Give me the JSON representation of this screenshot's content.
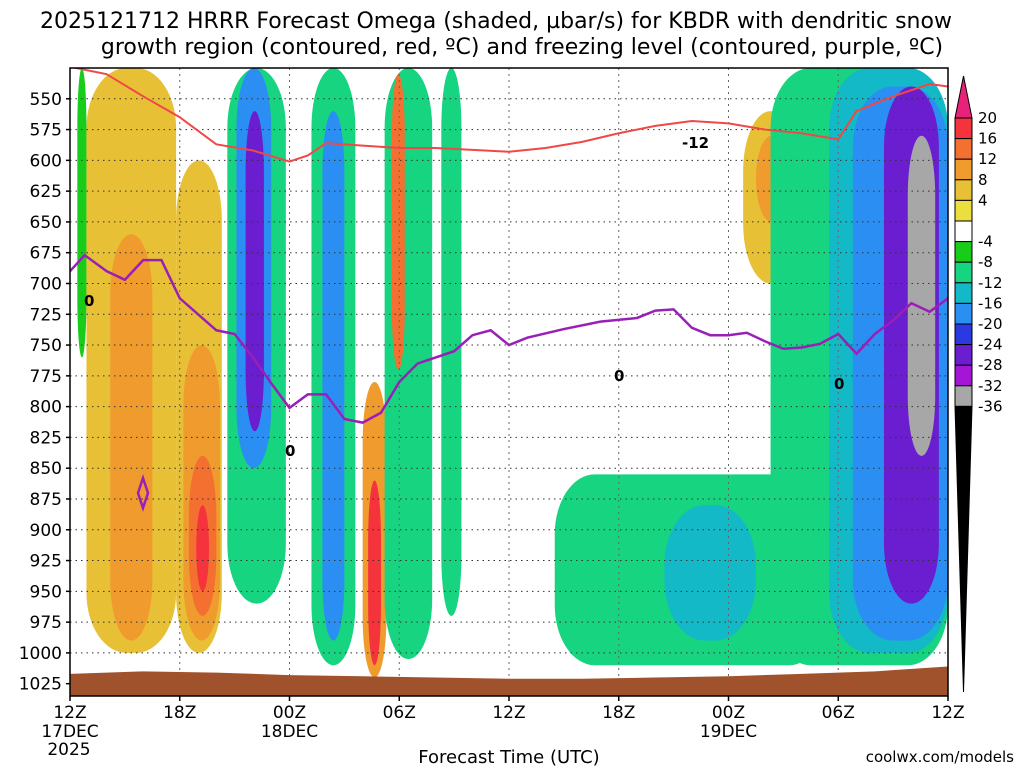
{
  "chart_data": {
    "type": "heatmap",
    "title_line1": "2025121712 HRRR Forecast Omega (shaded, µbar/s) for KBDR with dendritic snow",
    "title_line2": "growth region (contoured, red, ºC) and freezing level (contoured, purple, ºC)",
    "xlabel": "Forecast Time (UTC)",
    "ylabel": "",
    "credit": "coolwx.com/models",
    "x_range_hours": [
      0,
      48
    ],
    "y_range_hpa": [
      525,
      1035
    ],
    "x_ticks": [
      {
        "hour": 0,
        "label": "12Z",
        "sub1": "17DEC",
        "sub2": "2025"
      },
      {
        "hour": 6,
        "label": "18Z",
        "sub1": "",
        "sub2": ""
      },
      {
        "hour": 12,
        "label": "00Z",
        "sub1": "18DEC",
        "sub2": ""
      },
      {
        "hour": 18,
        "label": "06Z",
        "sub1": "",
        "sub2": ""
      },
      {
        "hour": 24,
        "label": "12Z",
        "sub1": "",
        "sub2": ""
      },
      {
        "hour": 30,
        "label": "18Z",
        "sub1": "",
        "sub2": ""
      },
      {
        "hour": 36,
        "label": "00Z",
        "sub1": "19DEC",
        "sub2": ""
      },
      {
        "hour": 42,
        "label": "06Z",
        "sub1": "",
        "sub2": ""
      },
      {
        "hour": 48,
        "label": "12Z",
        "sub1": "",
        "sub2": ""
      }
    ],
    "y_ticks": [
      "550",
      "575",
      "600",
      "625",
      "650",
      "675",
      "700",
      "725",
      "750",
      "775",
      "800",
      "825",
      "850",
      "875",
      "900",
      "925",
      "950",
      "975",
      "1000",
      "1025"
    ],
    "colorbar": {
      "labels": [
        "20",
        "16",
        "12",
        "8",
        "4",
        "-4",
        "-8",
        "-12",
        "-16",
        "-20",
        "-24",
        "-28",
        "-32",
        "-36"
      ],
      "colors": [
        "#e8217a",
        "#f4333c",
        "#f47030",
        "#f09b2e",
        "#e8c036",
        "#eadf3f",
        "#ffffff",
        "#19cc19",
        "#17d480",
        "#13b9c6",
        "#2b8ef2",
        "#2a3ae0",
        "#6b1ecf",
        "#a515d6",
        "#a7a7a7",
        "#000000"
      ]
    },
    "terrain_color": "#a0522d",
    "dgz_color": "#f04848",
    "freezing_color": "#9a1fb8",
    "freezing_level_hpa": [
      [
        0,
        690
      ],
      [
        0.8,
        677
      ],
      [
        2,
        690
      ],
      [
        3,
        697
      ],
      [
        4,
        681
      ],
      [
        5,
        681
      ],
      [
        6,
        712
      ],
      [
        8,
        738
      ],
      [
        9,
        741
      ],
      [
        10,
        760
      ],
      [
        11,
        781
      ],
      [
        12,
        801
      ],
      [
        13,
        790
      ],
      [
        14,
        790
      ],
      [
        15,
        810
      ],
      [
        16,
        813
      ],
      [
        17,
        805
      ],
      [
        18,
        780
      ],
      [
        19,
        765
      ],
      [
        21,
        755
      ],
      [
        22,
        742
      ],
      [
        23,
        738
      ],
      [
        24,
        750
      ],
      [
        25,
        744
      ],
      [
        27,
        737
      ],
      [
        29,
        731
      ],
      [
        31,
        728
      ],
      [
        32,
        722
      ],
      [
        33,
        721
      ],
      [
        34,
        736
      ],
      [
        35,
        742
      ],
      [
        36,
        742
      ],
      [
        37,
        740
      ],
      [
        38,
        747
      ],
      [
        39,
        753
      ],
      [
        40,
        752
      ],
      [
        41,
        749
      ],
      [
        42,
        741
      ],
      [
        43,
        757
      ],
      [
        44,
        741
      ],
      [
        45,
        730
      ],
      [
        46,
        716
      ],
      [
        47,
        723
      ],
      [
        48,
        712
      ]
    ],
    "dgz_minus12_hpa": [
      [
        0,
        524
      ],
      [
        2,
        530
      ],
      [
        4,
        548
      ],
      [
        6,
        565
      ],
      [
        8,
        587
      ],
      [
        10,
        592
      ],
      [
        12,
        601
      ],
      [
        13,
        596
      ],
      [
        14,
        586
      ],
      [
        16,
        588
      ],
      [
        18,
        590
      ],
      [
        20,
        590
      ],
      [
        24,
        593
      ],
      [
        26,
        590
      ],
      [
        28,
        585
      ],
      [
        30,
        578
      ],
      [
        32,
        572
      ],
      [
        34,
        568
      ],
      [
        36,
        570
      ],
      [
        38,
        575
      ],
      [
        40,
        578
      ],
      [
        42,
        583
      ],
      [
        43,
        560
      ],
      [
        45,
        548
      ],
      [
        47,
        538
      ],
      [
        48,
        540
      ]
    ],
    "labels": {
      "dgz_label": "-12",
      "fz_label": "0"
    },
    "omega_regions": [
      {
        "x0": 0.4,
        "x1": 0.9,
        "p0": 525,
        "p1": 760,
        "value": -6
      },
      {
        "x0": 0.9,
        "x1": 5.8,
        "p0": 525,
        "p1": 1000,
        "value": 5
      },
      {
        "x0": 2.2,
        "x1": 4.5,
        "p0": 660,
        "p1": 990,
        "value": 9
      },
      {
        "x0": 5.8,
        "x1": 8.3,
        "p0": 600,
        "p1": 1000,
        "value": 6
      },
      {
        "x0": 6.2,
        "x1": 8.2,
        "p0": 750,
        "p1": 990,
        "value": 10
      },
      {
        "x0": 6.5,
        "x1": 8.0,
        "p0": 840,
        "p1": 970,
        "value": 15
      },
      {
        "x0": 6.9,
        "x1": 7.6,
        "p0": 880,
        "p1": 950,
        "value": 18
      },
      {
        "x0": 8.6,
        "x1": 11.8,
        "p0": 525,
        "p1": 960,
        "value": -10
      },
      {
        "x0": 9.1,
        "x1": 11.0,
        "p0": 525,
        "p1": 850,
        "value": -18
      },
      {
        "x0": 9.6,
        "x1": 10.6,
        "p0": 560,
        "p1": 820,
        "value": -26
      },
      {
        "x0": 13.2,
        "x1": 15.6,
        "p0": 525,
        "p1": 1010,
        "value": -10
      },
      {
        "x0": 13.8,
        "x1": 15.0,
        "p0": 560,
        "p1": 990,
        "value": -18
      },
      {
        "x0": 16.0,
        "x1": 17.3,
        "p0": 780,
        "p1": 1020,
        "value": 8
      },
      {
        "x0": 16.3,
        "x1": 17.0,
        "p0": 860,
        "p1": 1010,
        "value": 16
      },
      {
        "x0": 17.2,
        "x1": 19.8,
        "p0": 525,
        "p1": 1005,
        "value": -9
      },
      {
        "x0": 17.6,
        "x1": 18.3,
        "p0": 530,
        "p1": 770,
        "value": 14
      },
      {
        "x0": 20.3,
        "x1": 21.4,
        "p0": 525,
        "p1": 970,
        "value": -9
      },
      {
        "x0": 26.5,
        "x1": 41.5,
        "p0": 855,
        "p1": 1010,
        "value": -8
      },
      {
        "x0": 32.5,
        "x1": 37.5,
        "p0": 880,
        "p1": 990,
        "value": -13
      },
      {
        "x0": 36.8,
        "x1": 39.8,
        "p0": 560,
        "p1": 700,
        "value": 6
      },
      {
        "x0": 37.5,
        "x1": 39.2,
        "p0": 580,
        "p1": 650,
        "value": 10
      },
      {
        "x0": 38.3,
        "x1": 48.0,
        "p0": 525,
        "p1": 1010,
        "value": -8
      },
      {
        "x0": 41.5,
        "x1": 48.0,
        "p0": 525,
        "p1": 1000,
        "value": -13
      },
      {
        "x0": 42.8,
        "x1": 48.0,
        "p0": 540,
        "p1": 990,
        "value": -18
      },
      {
        "x0": 44.5,
        "x1": 47.5,
        "p0": 540,
        "p1": 960,
        "value": -27
      },
      {
        "x0": 45.8,
        "x1": 47.3,
        "p0": 580,
        "p1": 840,
        "value": -33
      }
    ]
  }
}
